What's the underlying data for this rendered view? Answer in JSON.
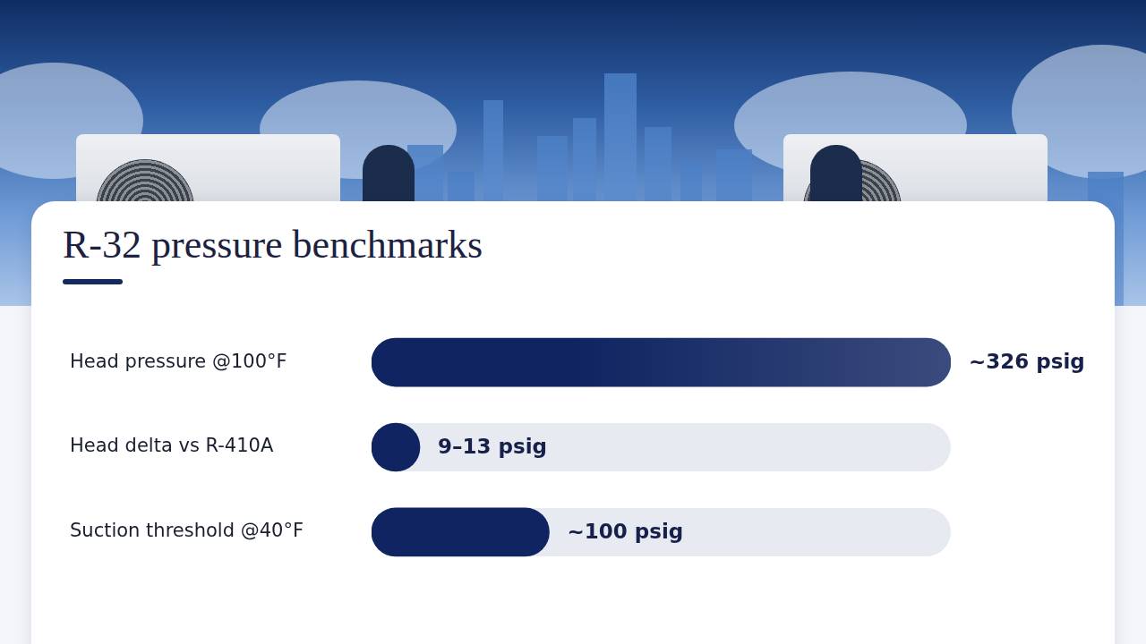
{
  "chart_data": {
    "type": "bar",
    "title": "R-32 pressure benchmarks",
    "orientation": "horizontal",
    "categories": [
      "Head pressure @100°F",
      "Head delta vs R-410A",
      "Suction threshold @40°F"
    ],
    "values": [
      326,
      13,
      100
    ],
    "value_labels": [
      "~326 psig",
      "9–13 psig",
      "~100 psig"
    ],
    "color": "#0f2461",
    "xlim": [
      0,
      326
    ],
    "tick_labels": "y",
    "data_labels": true,
    "grid": false
  }
}
